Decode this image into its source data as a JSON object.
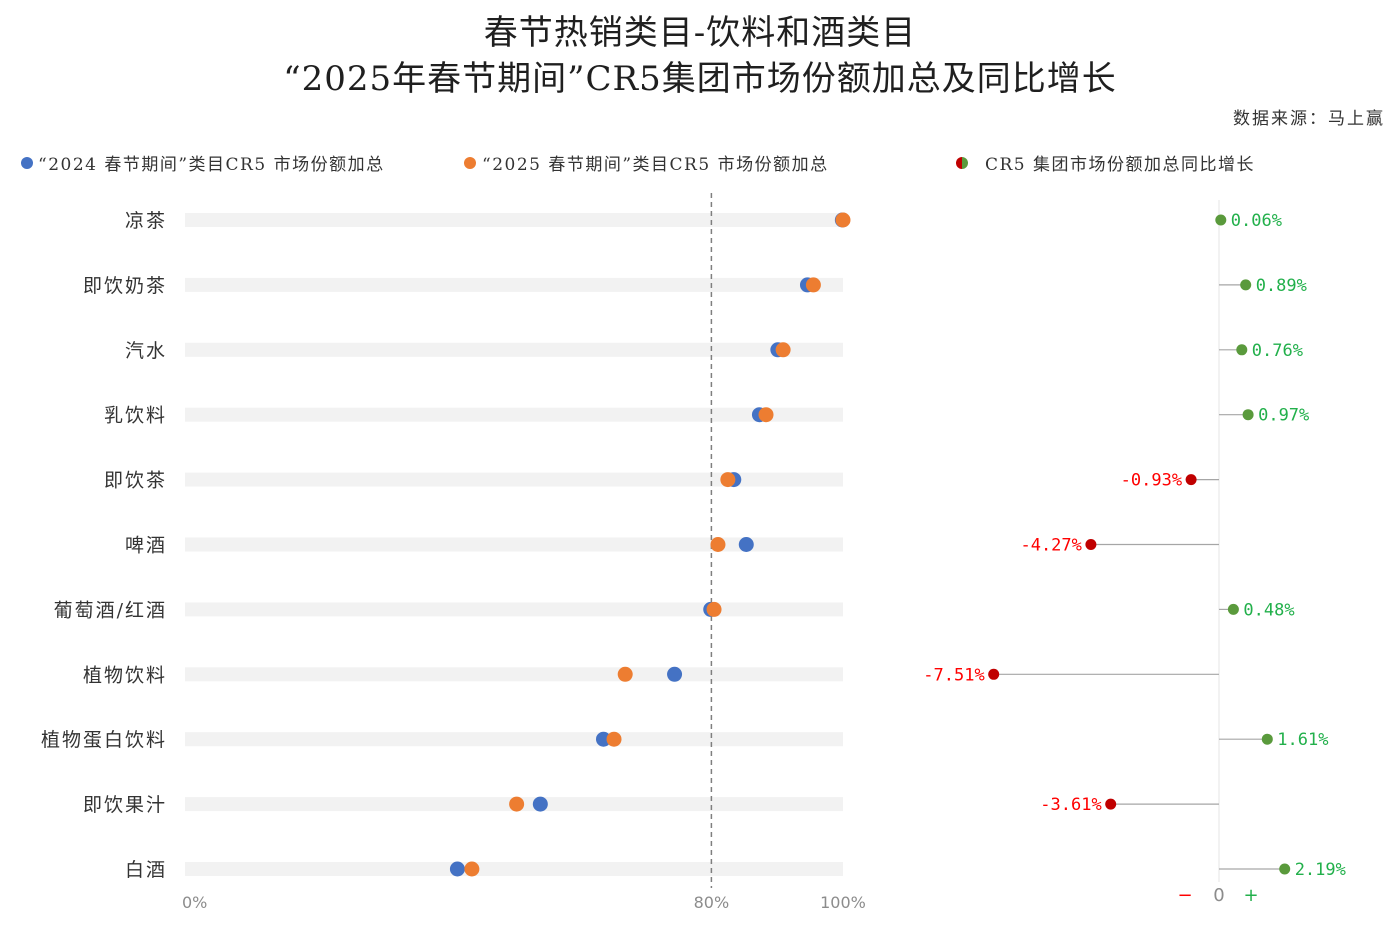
{
  "colors": {
    "track": "#F2F2F2",
    "reference_line": "#7F7F7F",
    "stem": "#A6A6A6",
    "zero_axis": "#E6E6E6",
    "positive_dot": "#5A9A3C",
    "positive_text": "#22B04B",
    "negative_dot": "#C00000",
    "negative_text": "#FF0000",
    "axis_text": "#8C8C8C"
  },
  "chart_data": [
    {
      "type": "scatter",
      "title": "春节热销类目-饮料和酒类目",
      "subtitle": "“2025年春节期间”CR5集团市场份额加总及同比增长",
      "source": "数据来源：马上赢",
      "categories": [
        "凉茶",
        "即饮奶茶",
        "汽水",
        "乳饮料",
        "即饮茶",
        "啤酒",
        "葡萄酒/红酒",
        "植物饮料",
        "植物蛋白饮料",
        "即饮果汁",
        "白酒"
      ],
      "series": [
        {
          "name": "“2024 春节期间”类目CR5 市场份额加总",
          "color": "#4472C4",
          "values": [
            99.9,
            94.6,
            90.1,
            87.3,
            83.4,
            85.3,
            79.9,
            74.4,
            63.6,
            54.0,
            41.4
          ]
        },
        {
          "name": "“2025 春节期间”类目CR5 市场份额加总",
          "color": "#ED7D31",
          "values": [
            100.0,
            95.5,
            90.9,
            88.3,
            82.5,
            81.0,
            80.4,
            66.9,
            65.2,
            50.4,
            43.6
          ]
        }
      ],
      "xlim": [
        0,
        100
      ],
      "x_ticks": [
        0,
        80,
        100
      ],
      "x_tick_labels": [
        "0%",
        "80%",
        "100%"
      ],
      "reference_line": 80,
      "grid": false,
      "legend_position": "top"
    },
    {
      "type": "bar",
      "orientation": "horizontal",
      "series": [
        {
          "name": "CR5 集团市场份额加总同比增长",
          "values": [
            0.06,
            0.89,
            0.76,
            0.97,
            -0.93,
            -4.27,
            0.48,
            -7.51,
            1.61,
            -3.61,
            2.19
          ]
        }
      ],
      "value_labels": [
        "0.06%",
        "0.89%",
        "0.76%",
        "0.97%",
        "-0.93%",
        "-4.27%",
        "0.48%",
        "-7.51%",
        "1.61%",
        "-3.61%",
        "2.19%"
      ],
      "axis_labels": [
        "−",
        "0",
        "+"
      ],
      "grid": false
    }
  ]
}
